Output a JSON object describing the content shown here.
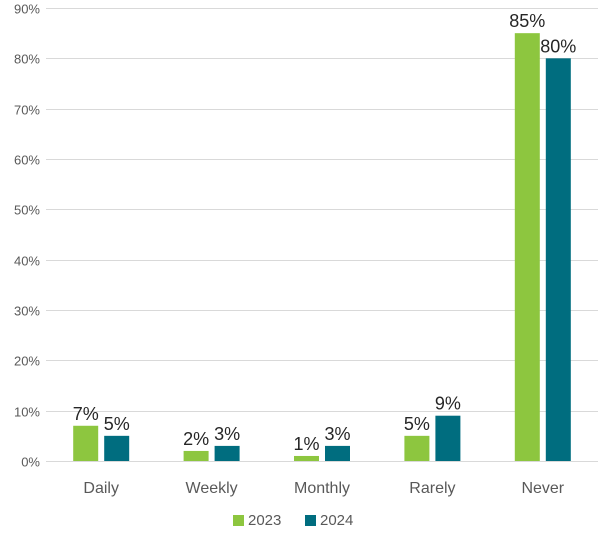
{
  "chart_data": {
    "type": "bar",
    "categories": [
      "Daily",
      "Weekly",
      "Monthly",
      "Rarely",
      "Never"
    ],
    "series": [
      {
        "name": "2023",
        "color": "#8dc63f",
        "values": [
          7,
          2,
          1,
          5,
          85
        ],
        "labels": [
          "7%",
          "2%",
          "1%",
          "5%",
          "85%"
        ]
      },
      {
        "name": "2024",
        "color": "#006d7f",
        "values": [
          5,
          3,
          3,
          9,
          80
        ],
        "labels": [
          "5%",
          "3%",
          "3%",
          "9%",
          "80%"
        ]
      }
    ],
    "ylim": [
      0,
      90
    ],
    "yticks": [
      0,
      10,
      20,
      30,
      40,
      50,
      60,
      70,
      80,
      90
    ],
    "ytick_labels": [
      "0%",
      "10%",
      "20%",
      "30%",
      "40%",
      "50%",
      "60%",
      "70%",
      "80%",
      "90%"
    ],
    "grid": true,
    "legend_position": "bottom-center",
    "grid_color": "#d9d9d9",
    "axis_label_color": "#595959",
    "data_label_color": "#262626"
  }
}
